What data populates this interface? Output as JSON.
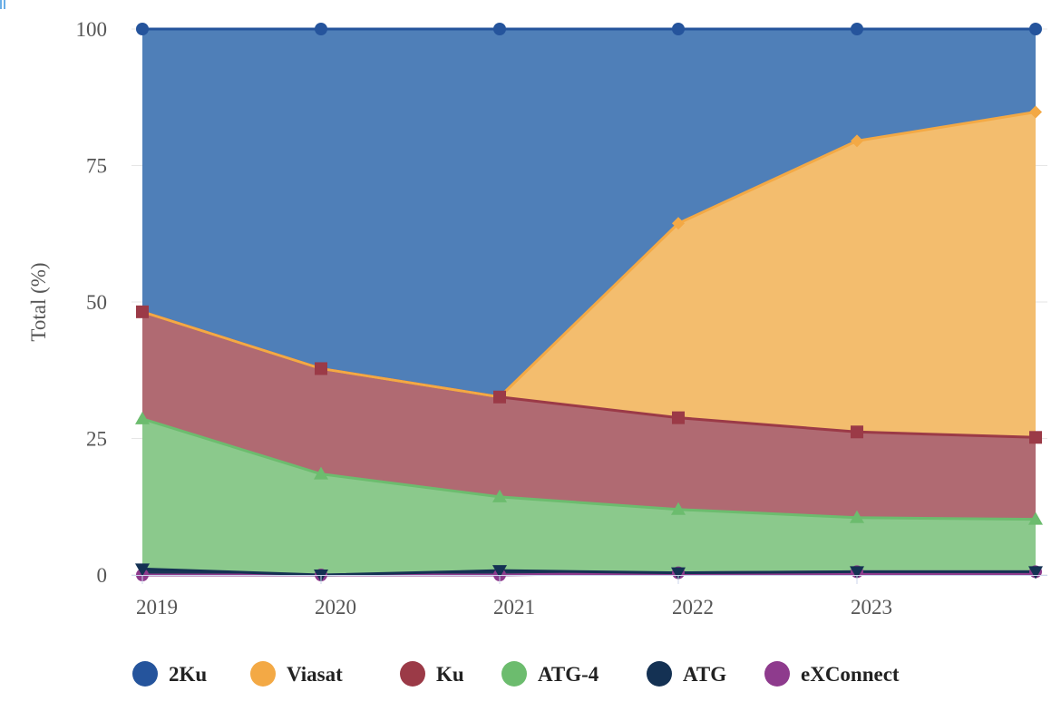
{
  "chart_data": {
    "type": "area",
    "stacked": true,
    "ylabel": "Total (%)",
    "ylim": [
      0,
      100
    ],
    "y_ticks": [
      0,
      25,
      50,
      75,
      100
    ],
    "x_ticks": [
      "2019",
      "2020",
      "2021",
      "2022",
      "2023"
    ],
    "x": [
      2019,
      2020,
      2021,
      2022,
      2023,
      2024
    ],
    "grid": "horizontal",
    "legend_position": "bottom-center",
    "series": [
      {
        "name": "2Ku",
        "color": "#4f7fb8",
        "marker_color": "#25549c",
        "marker": "circle",
        "values": [
          51.8,
          62.2,
          67.4,
          35.6,
          20.5,
          15.2
        ]
      },
      {
        "name": "Viasat",
        "color": "#f3bd6e",
        "marker_color": "#f3a945",
        "marker": "diamond",
        "values": [
          0,
          0,
          0,
          35.6,
          53.3,
          59.6
        ]
      },
      {
        "name": "Ku",
        "color": "#b06a72",
        "marker_color": "#9b3a47",
        "marker": "square",
        "values": [
          19.6,
          19.3,
          18.3,
          16.8,
          15.7,
          15.0
        ]
      },
      {
        "name": "ATG-4",
        "color": "#8bc98c",
        "marker_color": "#6cbc6e",
        "marker": "triangle",
        "values": [
          27.5,
          18.5,
          13.5,
          11.6,
          9.9,
          9.6
        ]
      },
      {
        "name": "ATG",
        "color": "#1a3756",
        "marker_color": "#143153",
        "marker": "triangle-down",
        "values": [
          1.1,
          0,
          0.8,
          0,
          0,
          0
        ]
      },
      {
        "name": "eXConnect",
        "color": "#8e3b8d",
        "marker_color": "#8e3b8d",
        "marker": "circle",
        "values": [
          0,
          0,
          0,
          0.4,
          0.6,
          0.6
        ]
      }
    ]
  }
}
